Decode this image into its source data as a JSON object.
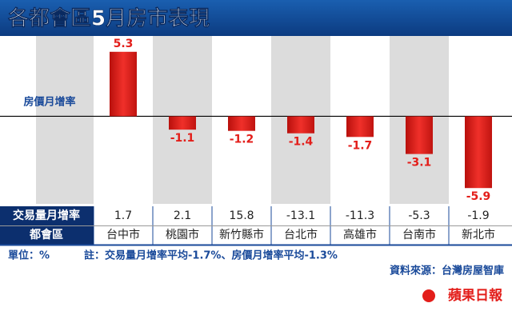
{
  "chart_data": {
    "type": "bar",
    "title": "各都會區5月房市表現",
    "y_label": "房價月增率",
    "categories": [
      "台中市",
      "桃園市",
      "新竹縣市",
      "台北市",
      "高雄市",
      "台南市",
      "新北市"
    ],
    "values": [
      5.3,
      -1.1,
      -1.2,
      -1.4,
      -1.7,
      -3.1,
      -5.9
    ],
    "color": "#e31e1a",
    "ylim": [
      -7.2,
      6.6
    ],
    "table": {
      "row_label": "交易量月增率",
      "values": [
        1.7,
        2.1,
        15.8,
        -13.1,
        -11.3,
        -5.3,
        -1.9
      ],
      "category_label": "都會區"
    },
    "unit": "單位：%",
    "note": "註：交易量月增率平均-1.7%、房價月增率平均-1.3%",
    "source": "資料來源：台灣房屋智庫",
    "logo": "蘋果日報"
  }
}
